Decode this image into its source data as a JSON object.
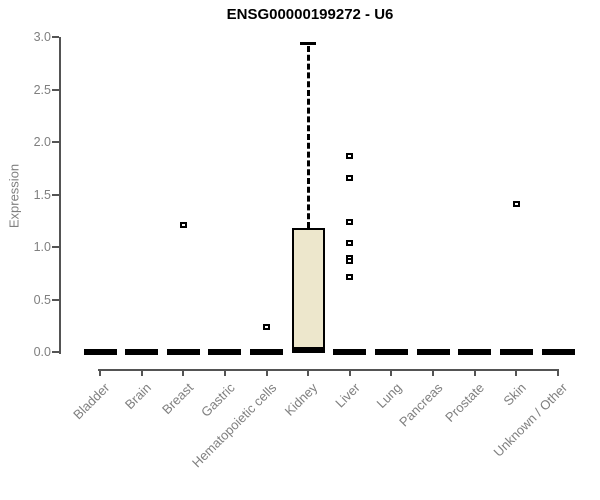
{
  "colors": {
    "title_color": "#000000",
    "axis_color": "#545454",
    "tick_label_color": "#7f7f7f",
    "box_fill": "#ede7cc",
    "box_border": "#000000",
    "whisker_color": "#000000",
    "median_color": "#000000",
    "outlier_color": "#000000",
    "background": "#ffffff"
  },
  "chart_data": {
    "type": "boxplot",
    "title": "ENSG00000199272 - U6",
    "xlabel": "",
    "ylabel": "Expression",
    "ylim": [
      0,
      3
    ],
    "grid": false,
    "legend": "none",
    "ytick_labels": [
      "0.0",
      "0.5",
      "1.0",
      "1.5",
      "2.0",
      "2.5",
      "3.0"
    ],
    "categories": [
      "Bladder",
      "Brain",
      "Breast",
      "Gastric",
      "Hematopoietic cells",
      "Kidney",
      "Liver",
      "Lung",
      "Pancreas",
      "Prostate",
      "Skin",
      "Unknown / Other"
    ],
    "boxes": [
      {
        "category": "Bladder",
        "median": 0,
        "q1": 0,
        "q3": 0,
        "whisker_low": 0,
        "whisker_high": 0,
        "outliers": []
      },
      {
        "category": "Brain",
        "median": 0,
        "q1": 0,
        "q3": 0,
        "whisker_low": 0,
        "whisker_high": 0,
        "outliers": []
      },
      {
        "category": "Breast",
        "median": 0,
        "q1": 0,
        "q3": 0,
        "whisker_low": 0,
        "whisker_high": 0,
        "outliers": [
          1.21
        ]
      },
      {
        "category": "Gastric",
        "median": 0,
        "q1": 0,
        "q3": 0,
        "whisker_low": 0,
        "whisker_high": 0,
        "outliers": []
      },
      {
        "category": "Hematopoietic cells",
        "median": 0,
        "q1": 0,
        "q3": 0,
        "whisker_low": 0,
        "whisker_high": 0,
        "outliers": [
          0.24
        ]
      },
      {
        "category": "Kidney",
        "median": 0.02,
        "q1": 0.02,
        "q3": 1.18,
        "whisker_low": 0.02,
        "whisker_high": 2.94,
        "outliers": []
      },
      {
        "category": "Liver",
        "median": 0,
        "q1": 0,
        "q3": 0,
        "whisker_low": 0,
        "whisker_high": 0,
        "outliers": [
          1.87,
          1.66,
          1.24,
          1.04,
          0.9,
          0.87,
          0.71
        ]
      },
      {
        "category": "Lung",
        "median": 0,
        "q1": 0,
        "q3": 0,
        "whisker_low": 0,
        "whisker_high": 0,
        "outliers": []
      },
      {
        "category": "Pancreas",
        "median": 0,
        "q1": 0,
        "q3": 0,
        "whisker_low": 0,
        "whisker_high": 0,
        "outliers": []
      },
      {
        "category": "Prostate",
        "median": 0,
        "q1": 0,
        "q3": 0,
        "whisker_low": 0,
        "whisker_high": 0,
        "outliers": []
      },
      {
        "category": "Skin",
        "median": 0,
        "q1": 0,
        "q3": 0,
        "whisker_low": 0,
        "whisker_high": 0,
        "outliers": [
          1.41
        ]
      },
      {
        "category": "Unknown / Other",
        "median": 0,
        "q1": 0,
        "q3": 0,
        "whisker_low": 0,
        "whisker_high": 0,
        "outliers": []
      }
    ],
    "marker": "open-square"
  }
}
